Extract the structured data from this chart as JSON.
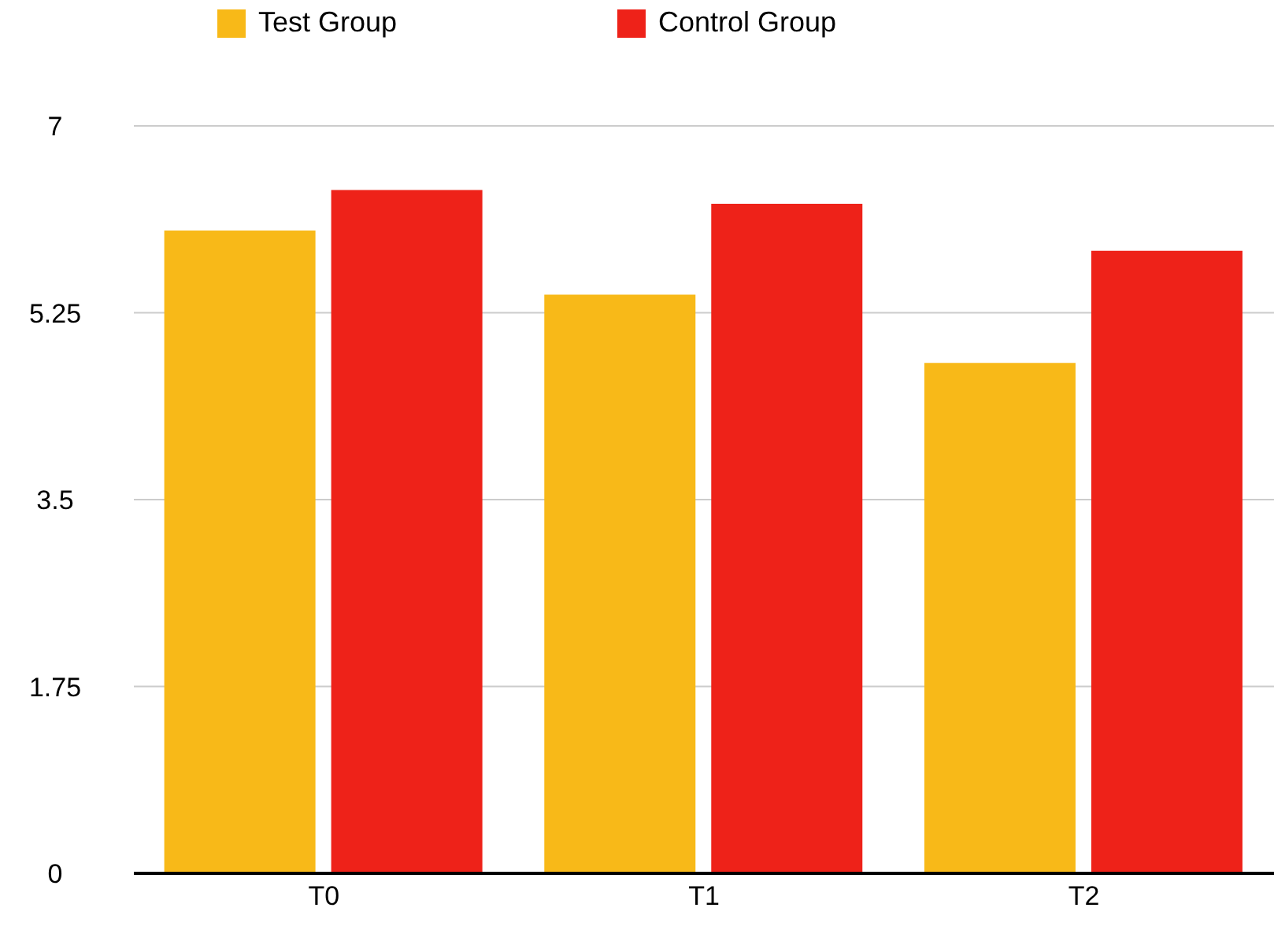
{
  "chart_data": {
    "type": "bar",
    "categories": [
      "T0",
      "T1",
      "T2"
    ],
    "series": [
      {
        "name": "Test Group",
        "color": "#f8b918",
        "values": [
          6.02,
          5.42,
          4.78
        ]
      },
      {
        "name": "Control Group",
        "color": "#ee2219",
        "values": [
          6.4,
          6.27,
          5.83
        ]
      }
    ],
    "ylim": [
      0,
      7
    ],
    "yticks": [
      0,
      1.75,
      3.5,
      5.25,
      7
    ],
    "grid": "y",
    "legend": "top"
  }
}
